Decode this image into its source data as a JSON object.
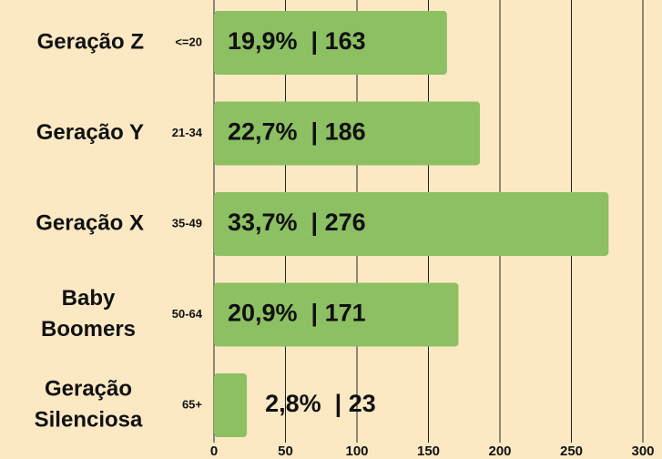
{
  "chart_data": {
    "type": "bar",
    "orientation": "horizontal",
    "categories": [
      [
        "Geração Z"
      ],
      [
        "Geração Y"
      ],
      [
        "Geração X"
      ],
      [
        "Baby",
        "Boomers"
      ],
      [
        "Geração",
        "Silenciosa"
      ]
    ],
    "age_ranges": [
      "<=20",
      "21-34",
      "35-49",
      "50-64",
      "65+"
    ],
    "values": [
      163,
      186,
      276,
      171,
      23
    ],
    "value_labels": [
      "19,9%  | 163",
      "22,7%  | 186",
      "33,7%  | 276",
      "20,9%  | 171",
      "2,8%  | 23"
    ],
    "color": "#8cc063",
    "xlim": [
      0,
      300
    ],
    "xticks": [
      0,
      50,
      100,
      150,
      200,
      250,
      300
    ],
    "grid": true
  }
}
